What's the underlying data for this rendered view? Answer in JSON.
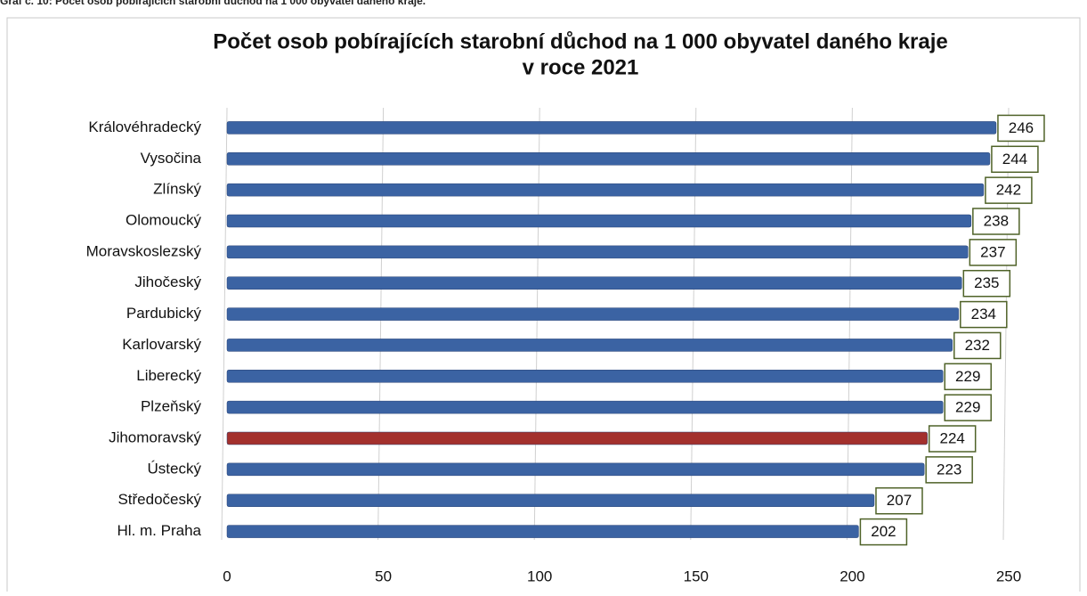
{
  "caption": "Graf č. 10: Počet osob pobírajících starobní důchod na 1 000 obyvatel daného kraje.",
  "chart_data": {
    "type": "barh",
    "title": [
      "Počet osob pobírajících starobní důchod na 1 000 obyvatel daného kraje",
      "v roce 2021"
    ],
    "categories": [
      "Královéhradecký",
      "Vysočina",
      "Zlínský",
      "Olomoucký",
      "Moravskoslezský",
      "Jihočeský",
      "Pardubický",
      "Karlovarský",
      "Liberecký",
      "Plzeňský",
      "Jihomoravský",
      "Ústecký",
      "Středočeský",
      "Hl. m. Praha"
    ],
    "values": [
      246,
      244,
      242,
      238,
      237,
      235,
      234,
      232,
      229,
      229,
      224,
      223,
      207,
      202
    ],
    "colors": [
      "#3b63a3",
      "#3b63a3",
      "#3b63a3",
      "#3b63a3",
      "#3b63a3",
      "#3b63a3",
      "#3b63a3",
      "#3b63a3",
      "#3b63a3",
      "#3b63a3",
      "#a3302d",
      "#3b63a3",
      "#3b63a3",
      "#3b63a3"
    ],
    "xlim": [
      0,
      250
    ],
    "xticks": [
      0,
      50,
      100,
      150,
      200,
      250
    ],
    "grid": true
  }
}
